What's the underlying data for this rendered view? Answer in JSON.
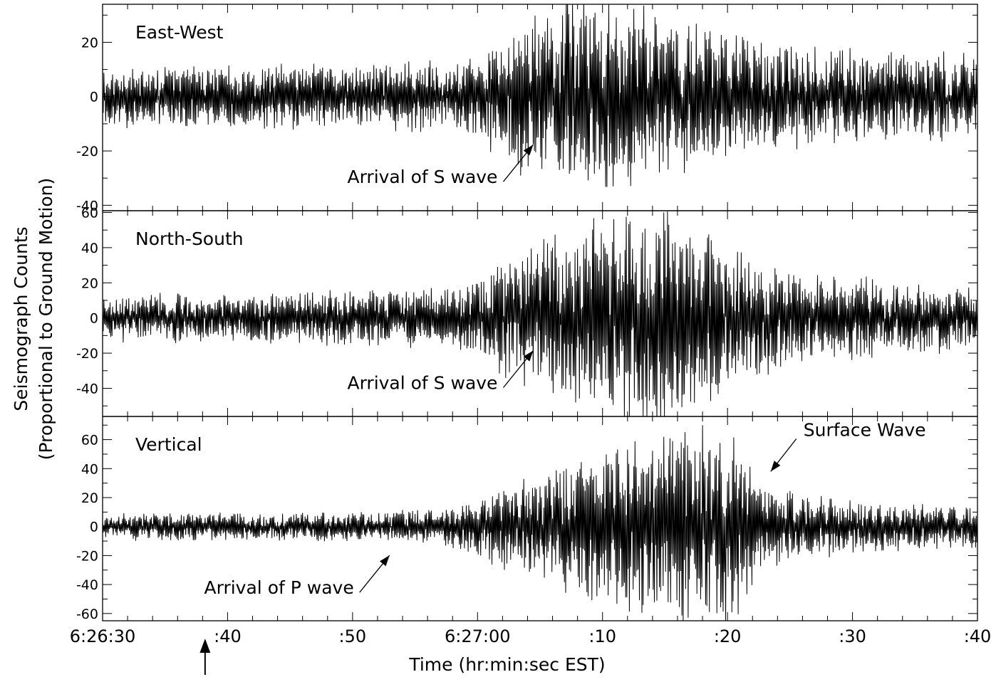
{
  "chart_data": {
    "type": "line",
    "xlabel": "Time (hr:min:sec EST)",
    "ylabel": [
      "Seismograph Counts",
      "(Proportional to Ground Motion)"
    ],
    "x_unit": "seconds",
    "xlim": [
      0,
      70
    ],
    "x_ticks": [
      {
        "x": 0,
        "label": "6:26:30"
      },
      {
        "x": 10,
        "label": ":40"
      },
      {
        "x": 20,
        "label": ":50"
      },
      {
        "x": 30,
        "label": "6:27:00"
      },
      {
        "x": 40,
        "label": ":10"
      },
      {
        "x": 50,
        "label": ":20"
      },
      {
        "x": 60,
        "label": ":30"
      },
      {
        "x": 70,
        "label": ":40"
      }
    ],
    "bottom_marker_x": 8.2,
    "panels": [
      {
        "name": "East-West",
        "ylim": [
          -42,
          34
        ],
        "y_ticks": [
          20,
          0,
          -20,
          -40
        ],
        "envelope": [
          [
            0,
            10
          ],
          [
            20,
            11
          ],
          [
            29,
            12
          ],
          [
            33,
            26
          ],
          [
            37,
            33
          ],
          [
            43,
            30
          ],
          [
            48,
            24
          ],
          [
            55,
            17
          ],
          [
            70,
            14
          ]
        ],
        "seed": 11,
        "annotation": {
          "text": "Arrival of S wave",
          "x": 34
        }
      },
      {
        "name": "North-South",
        "ylim": [
          -56,
          61
        ],
        "y_ticks": [
          60,
          40,
          20,
          0,
          -20,
          -40
        ],
        "envelope": [
          [
            0,
            12
          ],
          [
            20,
            14
          ],
          [
            29,
            18
          ],
          [
            33,
            35
          ],
          [
            40,
            52
          ],
          [
            45,
            55
          ],
          [
            50,
            40
          ],
          [
            56,
            24
          ],
          [
            70,
            16
          ]
        ],
        "seed": 23,
        "annotation": {
          "text": "Arrival of S wave",
          "x": 34
        }
      },
      {
        "name": "Vertical",
        "ylim": [
          -65,
          76
        ],
        "y_ticks": [
          60,
          40,
          20,
          0,
          -20,
          -40,
          -60
        ],
        "envelope": [
          [
            0,
            9
          ],
          [
            22,
            9
          ],
          [
            28,
            13
          ],
          [
            33,
            30
          ],
          [
            40,
            50
          ],
          [
            46,
            64
          ],
          [
            50,
            68
          ],
          [
            53,
            25
          ],
          [
            60,
            16
          ],
          [
            70,
            14
          ]
        ],
        "seed": 37,
        "annotation": {
          "text": "Arrival of P wave",
          "x": 22.5
        },
        "annotation2": {
          "text": "Surface Wave",
          "x": 53
        }
      }
    ]
  }
}
